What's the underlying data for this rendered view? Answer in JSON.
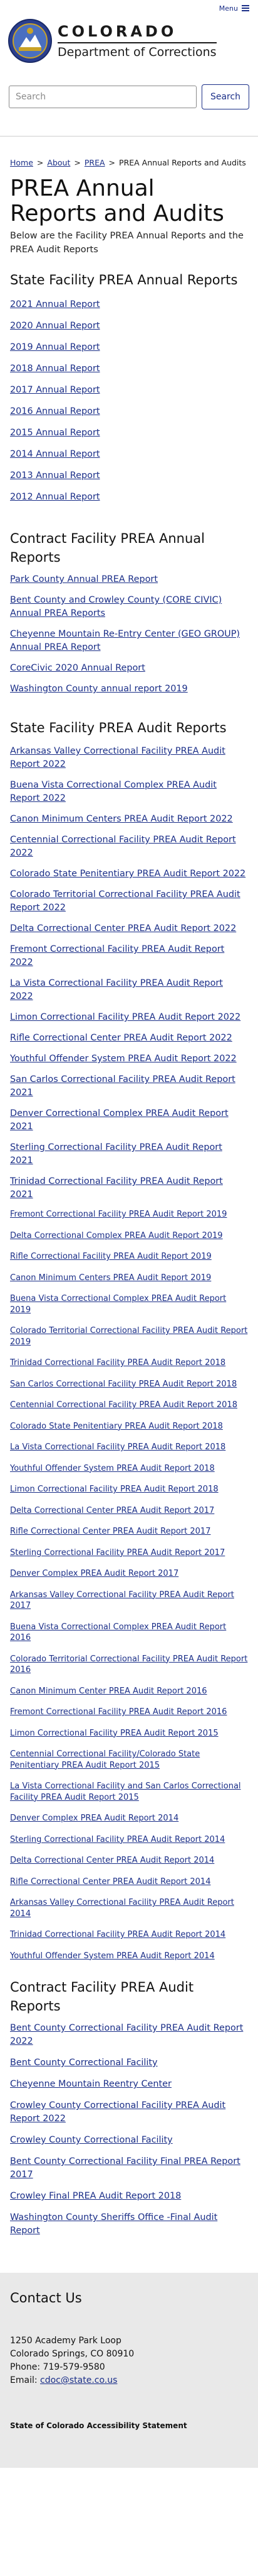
{
  "header": {
    "menu_label": "Menu",
    "state_name": "COLORADO",
    "department": "Department of Corrections",
    "search_placeholder": "Search",
    "search_button": "Search"
  },
  "breadcrumb": [
    "Home",
    "About",
    "PREA",
    "PREA Annual Reports and Audits"
  ],
  "page": {
    "title": "PREA Annual Reports and Audits",
    "intro": "Below are the Facility PREA Annual Reports and the PREA Audit Reports"
  },
  "state_annual": {
    "heading": "State Facility PREA Annual Reports",
    "items": [
      "2021 Annual Report",
      "2020 Annual Report",
      "2019 Annual Report",
      "2018 Annual Report",
      "2017 Annual Report",
      "2016 Annual Report",
      "2015 Annual Report",
      "2014 Annual Report",
      "2013 Annual Report",
      "2012 Annual Report"
    ]
  },
  "contract_annual": {
    "heading": "Contract Facility PREA Annual Reports",
    "items": [
      "Park County Annual PREA Report",
      "Bent County and Crowley County (CORE CIVIC) Annual PREA Reports",
      "Cheyenne Mountain Re-Entry Center (GEO GROUP) Annual PREA Report",
      "CoreCivic 2020 Annual Report",
      "Washington County annual report 2019"
    ]
  },
  "state_audit": {
    "heading": "State Facility PREA Audit Reports",
    "items_large": [
      "Arkansas Valley Correctional Facility PREA Audit Report 2022",
      "Buena Vista Correctional Complex PREA Audit Report 2022",
      "Canon Minimum Centers PREA Audit Report 2022",
      "Centennial Correctional Facility PREA Audit Report 2022",
      "Colorado State Penitentiary PREA Audit Report 2022",
      "Colorado Territorial Correctional Facility PREA Audit Report 2022",
      "Delta Correctional Center PREA Audit Report 2022",
      "Fremont Correctional Facility PREA Audit Report 2022",
      "La Vista Correctional Facility PREA Audit Report 2022",
      "Limon Correctional Facility PREA Audit Report 2022",
      "Rifle Correctional Center PREA Audit Report 2022",
      "Youthful Offender System PREA Audit Report 2022",
      "San Carlos Correctional Facility PREA Audit Report 2021",
      "Denver Correctional Complex PREA Audit Report 2021",
      "Sterling Correctional Facility PREA Audit Report 2021",
      "Trinidad Correctional Facility PREA Audit Report 2021"
    ],
    "items_small": [
      "Fremont Correctional Facility PREA Audit Report 2019",
      "Delta Correctional Complex PREA Audit Report 2019",
      "Rifle Correctional Facility PREA Audit Report 2019",
      "Canon Minimum Centers PREA Audit Report 2019",
      "Buena Vista Correctional Complex PREA Audit Report 2019",
      "Colorado Territorial Correctional Facility PREA Audit Report 2019",
      "Trinidad Correctional Facility PREA Audit Report 2018",
      "San Carlos Correctional Facility PREA Audit Report 2018",
      "Centennial Correctional Facility PREA Audit Report 2018",
      "Colorado State Penitentiary PREA Audit Report 2018",
      "La Vista Correctional Facility PREA Audit Report 2018",
      "Youthful Offender System PREA Audit Report 2018",
      "Limon Correctional Facility PREA Audit Report 2018",
      "Delta Correctional Center PREA Audit Report 2017",
      "Rifle Correctional Center PREA Audit Report 2017",
      "Sterling Correctional Facility PREA Audit Report 2017",
      "Denver Complex PREA Audit Report 2017",
      "Arkansas Valley Correctional Facility PREA Audit Report 2017",
      "Buena Vista Correctional Complex PREA Audit Report 2016",
      "Colorado Territorial Correctional Facility PREA Audit Report 2016",
      "Canon Minimum Center PREA Audit Report 2016",
      "Fremont Correctional Facility PREA Audit Report 2016",
      "Limon Correctional Facility PREA Audit Report 2015",
      "Centennial Correctional Facility/Colorado State Penitentiary PREA Audit Report 2015",
      "La Vista Correctional Facility and San Carlos Correctional Facility PREA Audit Report 2015",
      "Denver Complex PREA Audit Report 2014",
      "Sterling Correctional Facility PREA Audit Report 2014",
      "Delta Correctional Center PREA Audit Report 2014",
      "Rifle Correctional Center PREA Audit Report 2014",
      "Arkansas Valley Correctional Facility PREA Audit Report 2014",
      "Trinidad Correctional Facility PREA Audit Report 2014",
      "Youthful Offender System PREA Audit Report 2014"
    ]
  },
  "contract_audit": {
    "heading": "Contract Facility PREA Audit Reports",
    "items": [
      "Bent County Correctional Facility PREA Audit Report 2022",
      "Bent County Correctional Facility",
      "Cheyenne Mountain Reentry Center",
      "Crowley County Correctional Facility PREA Audit Report 2022",
      "Crowley County Correctional Facility",
      "Bent County Correctional Facility Final PREA Report 2017",
      "Crowley Final PREA Audit Report 2018",
      "Washington County Sheriffs Office -Final Audit Report"
    ]
  },
  "footer": {
    "heading": "Contact Us",
    "address1": "1250 Academy Park Loop",
    "address2": "Colorado Springs, CO 80910",
    "phone": "Phone: 719-579-9580",
    "email_label": "Email: ",
    "email": "cdoc@state.co.us",
    "accessibility": "State of Colorado Accessibility Statement"
  },
  "colors": {
    "link": "#1b2f88",
    "footer_bg": "#e9e9e9"
  }
}
